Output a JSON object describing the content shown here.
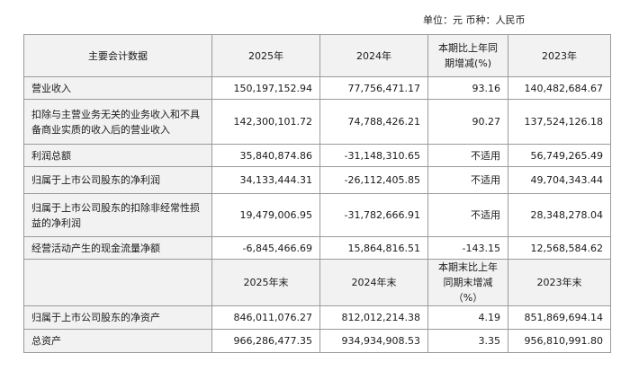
{
  "unit_note": "单位：元 币种：人民币",
  "header1": [
    "主要会计数据",
    "2025年",
    "2024年",
    "本期比上年同期增减(%)",
    "2023年"
  ],
  "rows1": [
    [
      "营业收入",
      "150,197,152.94",
      "77,756,471.17",
      "93.16",
      "140,482,684.67"
    ],
    [
      "扣除与主营业务无关的业务收入和不具备商业实质的收入后的营业收入",
      "142,300,101.72",
      "74,788,426.21",
      "90.27",
      "137,524,126.18"
    ],
    [
      "利润总额",
      "35,840,874.86",
      "-31,148,310.65",
      "不适用",
      "56,749,265.49"
    ],
    [
      "归属于上市公司股东的净利润",
      "34,133,444.31",
      "-26,112,405.85",
      "不适用",
      "49,704,343.44"
    ],
    [
      "归属于上市公司股东的扣除非经常性损益的净利润",
      "19,479,006.95",
      "-31,782,666.91",
      "不适用",
      "28,348,278.04"
    ],
    [
      "经营活动产生的现金流量净额",
      "-6,845,466.69",
      "15,864,816.51",
      "-143.15",
      "12,568,584.62"
    ]
  ],
  "header2": [
    "",
    "2025年末",
    "2024年末",
    "本期末比上年同期末增减（%）",
    "2023年末"
  ],
  "rows2": [
    [
      "归属于上市公司股东的净资产",
      "846,011,076.27",
      "812,012,214.38",
      "4.19",
      "851,869,694.14"
    ],
    [
      "总资产",
      "966,286,477.35",
      "934,934,908.53",
      "3.35",
      "956,810,991.80"
    ]
  ]
}
